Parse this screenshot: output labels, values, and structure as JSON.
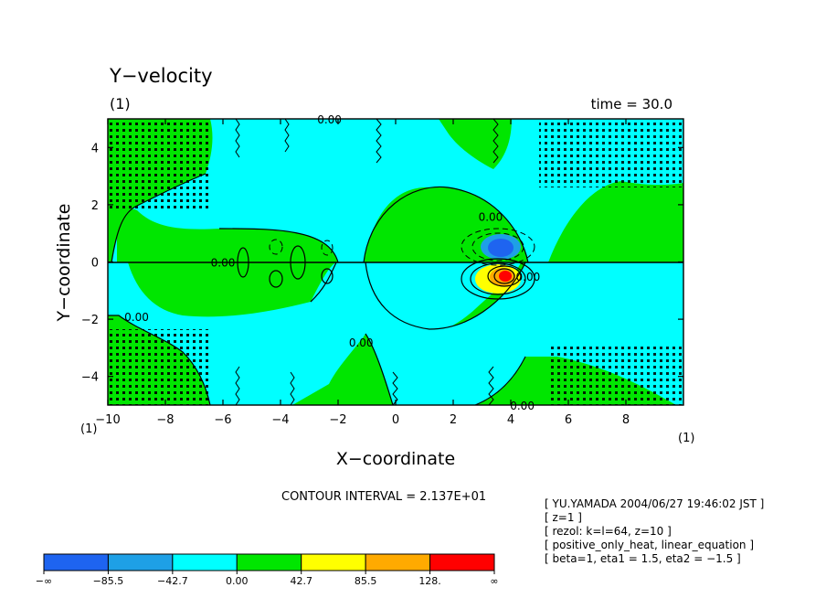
{
  "chart_data": {
    "type": "contour",
    "title": "Y−velocity",
    "subtitle": "(1)",
    "time_label": "time = 30.0",
    "xlabel": "X−coordinate",
    "ylabel": "Y−coordinate",
    "x_unit": "(1)",
    "y_unit": "(1)",
    "xlim": [
      -10,
      10
    ],
    "ylim": [
      -5,
      5
    ],
    "x_ticks": [
      "−10",
      "−8",
      "−6",
      "−4",
      "−2",
      "0",
      "2",
      "4",
      "6",
      "8"
    ],
    "x_tick_values": [
      -10,
      -8,
      -6,
      -4,
      -2,
      0,
      2,
      4,
      6,
      8
    ],
    "y_ticks": [
      "4",
      "2",
      "0",
      "−2",
      "−4"
    ],
    "y_tick_values": [
      4,
      2,
      0,
      -2,
      -4
    ],
    "contour_interval": "CONTOUR INTERVAL = 2.137E+01",
    "contour_labels": [
      {
        "text": "0.00",
        "x": -2.3,
        "y": 5.0
      },
      {
        "text": "0.00",
        "x": 3.3,
        "y": 1.6
      },
      {
        "text": "0.00",
        "x": -6.0,
        "y": 0.0
      },
      {
        "text": "0.00",
        "x": 4.6,
        "y": -0.5
      },
      {
        "text": "0.00",
        "x": -9.0,
        "y": -1.9
      },
      {
        "text": "0.00",
        "x": -1.2,
        "y": -2.8
      },
      {
        "text": "0.00",
        "x": 4.4,
        "y": -5.0
      }
    ],
    "colorbar": {
      "levels": [
        "−∞",
        "−85.5",
        "−42.7",
        "0.00",
        "42.7",
        "85.5",
        "128.",
        "∞"
      ],
      "colors": [
        "#1e64f0",
        "#1ea0e6",
        "#00ffff",
        "#00e600",
        "#ffff00",
        "#ffaa00",
        "#ff0000"
      ]
    },
    "info": [
      "[ YU.YAMADA 2004/06/27 19:46:02 JST ]",
      "[ z=1 ]",
      "[ rezol: k=l=64, z=10 ]",
      "[ positive_only_heat, linear_equation ]",
      "[ beta=1, eta1 = 1.5, eta2 = −1.5 ]"
    ]
  }
}
